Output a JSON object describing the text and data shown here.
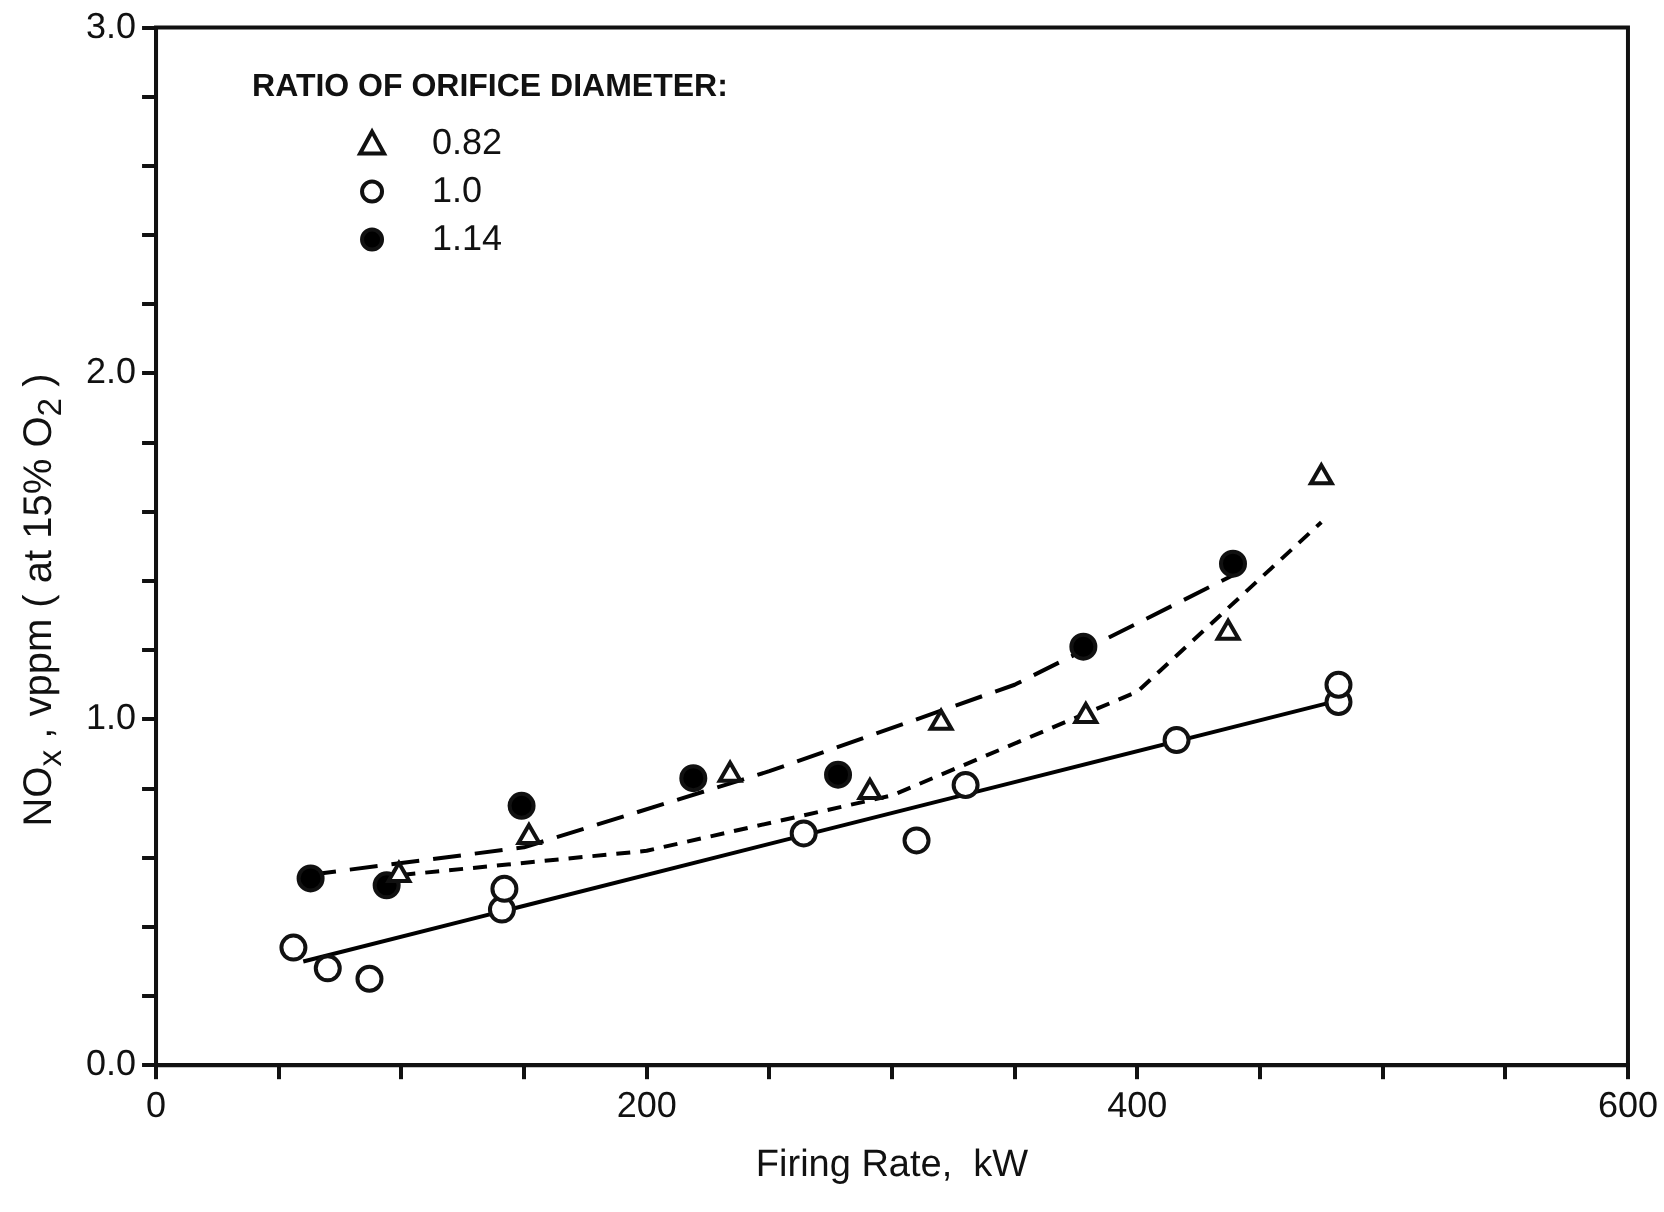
{
  "chart_data": {
    "type": "scatter",
    "xlabel": "Firing Rate,  kW",
    "ylabel": "NO$_{x}$ ,  vppm ( at 15% O$_{2}$ )",
    "legend_title": "RATIO OF ORIFICE DIAMETER:",
    "legend": "top left",
    "grid": false,
    "xlim": [
      0,
      600
    ],
    "ylim": [
      0,
      3
    ],
    "xticks": [
      0,
      {
        "value": 50,
        "label": null
      },
      {
        "value": 100,
        "label": null
      },
      {
        "value": 150,
        "label": null
      },
      200,
      {
        "value": 250,
        "label": null
      },
      {
        "value": 300,
        "label": null
      },
      {
        "value": 350,
        "label": null
      },
      400,
      {
        "value": 450,
        "label": null
      },
      {
        "value": 500,
        "label": null
      },
      {
        "value": 550,
        "label": null
      },
      600
    ],
    "yticks": [
      {
        "value": 0,
        "label": "0.0"
      },
      {
        "value": 0.2,
        "label": null
      },
      {
        "value": 0.4,
        "label": null
      },
      {
        "value": 0.6,
        "label": null
      },
      {
        "value": 0.8,
        "label": null
      },
      {
        "value": 1,
        "label": "1.0"
      },
      {
        "value": 1.2,
        "label": null
      },
      {
        "value": 1.4,
        "label": null
      },
      {
        "value": 1.6,
        "label": null
      },
      {
        "value": 1.8,
        "label": null
      },
      {
        "value": 2,
        "label": "2.0"
      },
      {
        "value": 2.2,
        "label": null
      },
      {
        "value": 2.4,
        "label": null
      },
      {
        "value": 2.6,
        "label": null
      },
      {
        "value": 2.8,
        "label": null
      },
      {
        "value": 3,
        "label": "3.0"
      }
    ],
    "series": [
      {
        "name": "0.82",
        "type": "scatter",
        "marker": "triangle",
        "color": "#ffffff",
        "x": [
          99,
          152,
          234,
          291,
          320,
          379,
          437,
          475
        ],
        "values": [
          0.55,
          0.66,
          0.84,
          0.79,
          0.99,
          1.01,
          1.25,
          1.7
        ]
      },
      {
        "name": "1.0",
        "type": "scatter",
        "marker": "circle",
        "color": "#ffffff",
        "x": [
          56,
          70,
          87,
          141,
          142,
          264,
          310,
          330,
          416,
          482,
          482
        ],
        "values": [
          0.34,
          0.28,
          0.25,
          0.45,
          0.51,
          0.67,
          0.65,
          0.81,
          0.94,
          1.05,
          1.1
        ]
      },
      {
        "name": "1.14",
        "type": "scatter",
        "marker": "circle",
        "color": "#000000",
        "x": [
          63,
          94,
          149,
          219,
          278,
          378,
          439
        ],
        "values": [
          0.54,
          0.52,
          0.75,
          0.83,
          0.84,
          1.21,
          1.45
        ]
      },
      {
        "type": "line",
        "line_style": "solid",
        "color": "#000000",
        "x": [
          60,
          485
        ],
        "values": [
          0.3,
          1.06
        ]
      },
      {
        "type": "line",
        "line_style": "dashed",
        "color": "#000000",
        "x": [
          62,
          150,
          250,
          350,
          440
        ],
        "values": [
          0.55,
          0.63,
          0.85,
          1.1,
          1.42
        ]
      },
      {
        "type": "line",
        "line_style": "dotted",
        "color": "#000000",
        "x": [
          100,
          200,
          300,
          400,
          475
        ],
        "values": [
          0.55,
          0.62,
          0.78,
          1.08,
          1.57
        ]
      }
    ]
  }
}
